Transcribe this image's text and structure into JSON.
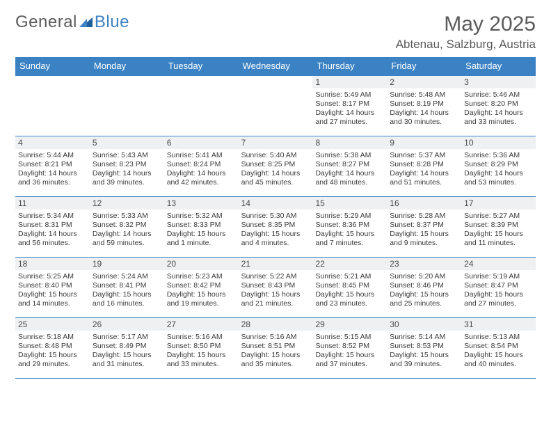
{
  "brand": {
    "part1": "General",
    "part2": "Blue"
  },
  "title": "May 2025",
  "location": "Abtenau, Salzburg, Austria",
  "colors": {
    "header_bg": "#3b82c4",
    "header_text": "#ffffff",
    "daynum_bg": "#eef0f2",
    "text": "#3a3a3a",
    "page_bg": "#ffffff"
  },
  "dow": [
    "Sunday",
    "Monday",
    "Tuesday",
    "Wednesday",
    "Thursday",
    "Friday",
    "Saturday"
  ],
  "weeks": [
    [
      {
        "n": "",
        "sr": "",
        "ss": "",
        "dlh": "",
        "dlm": ""
      },
      {
        "n": "",
        "sr": "",
        "ss": "",
        "dlh": "",
        "dlm": ""
      },
      {
        "n": "",
        "sr": "",
        "ss": "",
        "dlh": "",
        "dlm": ""
      },
      {
        "n": "",
        "sr": "",
        "ss": "",
        "dlh": "",
        "dlm": ""
      },
      {
        "n": "1",
        "sr": "5:49 AM",
        "ss": "8:17 PM",
        "dlh": "14",
        "dlm": "27"
      },
      {
        "n": "2",
        "sr": "5:48 AM",
        "ss": "8:19 PM",
        "dlh": "14",
        "dlm": "30"
      },
      {
        "n": "3",
        "sr": "5:46 AM",
        "ss": "8:20 PM",
        "dlh": "14",
        "dlm": "33"
      }
    ],
    [
      {
        "n": "4",
        "sr": "5:44 AM",
        "ss": "8:21 PM",
        "dlh": "14",
        "dlm": "36"
      },
      {
        "n": "5",
        "sr": "5:43 AM",
        "ss": "8:23 PM",
        "dlh": "14",
        "dlm": "39"
      },
      {
        "n": "6",
        "sr": "5:41 AM",
        "ss": "8:24 PM",
        "dlh": "14",
        "dlm": "42"
      },
      {
        "n": "7",
        "sr": "5:40 AM",
        "ss": "8:25 PM",
        "dlh": "14",
        "dlm": "45"
      },
      {
        "n": "8",
        "sr": "5:38 AM",
        "ss": "8:27 PM",
        "dlh": "14",
        "dlm": "48"
      },
      {
        "n": "9",
        "sr": "5:37 AM",
        "ss": "8:28 PM",
        "dlh": "14",
        "dlm": "51"
      },
      {
        "n": "10",
        "sr": "5:36 AM",
        "ss": "8:29 PM",
        "dlh": "14",
        "dlm": "53"
      }
    ],
    [
      {
        "n": "11",
        "sr": "5:34 AM",
        "ss": "8:31 PM",
        "dlh": "14",
        "dlm": "56"
      },
      {
        "n": "12",
        "sr": "5:33 AM",
        "ss": "8:32 PM",
        "dlh": "14",
        "dlm": "59"
      },
      {
        "n": "13",
        "sr": "5:32 AM",
        "ss": "8:33 PM",
        "dlh": "15",
        "dlm": "1",
        "singular": true
      },
      {
        "n": "14",
        "sr": "5:30 AM",
        "ss": "8:35 PM",
        "dlh": "15",
        "dlm": "4"
      },
      {
        "n": "15",
        "sr": "5:29 AM",
        "ss": "8:36 PM",
        "dlh": "15",
        "dlm": "7"
      },
      {
        "n": "16",
        "sr": "5:28 AM",
        "ss": "8:37 PM",
        "dlh": "15",
        "dlm": "9"
      },
      {
        "n": "17",
        "sr": "5:27 AM",
        "ss": "8:39 PM",
        "dlh": "15",
        "dlm": "11"
      }
    ],
    [
      {
        "n": "18",
        "sr": "5:25 AM",
        "ss": "8:40 PM",
        "dlh": "15",
        "dlm": "14"
      },
      {
        "n": "19",
        "sr": "5:24 AM",
        "ss": "8:41 PM",
        "dlh": "15",
        "dlm": "16"
      },
      {
        "n": "20",
        "sr": "5:23 AM",
        "ss": "8:42 PM",
        "dlh": "15",
        "dlm": "19"
      },
      {
        "n": "21",
        "sr": "5:22 AM",
        "ss": "8:43 PM",
        "dlh": "15",
        "dlm": "21"
      },
      {
        "n": "22",
        "sr": "5:21 AM",
        "ss": "8:45 PM",
        "dlh": "15",
        "dlm": "23"
      },
      {
        "n": "23",
        "sr": "5:20 AM",
        "ss": "8:46 PM",
        "dlh": "15",
        "dlm": "25"
      },
      {
        "n": "24",
        "sr": "5:19 AM",
        "ss": "8:47 PM",
        "dlh": "15",
        "dlm": "27"
      }
    ],
    [
      {
        "n": "25",
        "sr": "5:18 AM",
        "ss": "8:48 PM",
        "dlh": "15",
        "dlm": "29"
      },
      {
        "n": "26",
        "sr": "5:17 AM",
        "ss": "8:49 PM",
        "dlh": "15",
        "dlm": "31"
      },
      {
        "n": "27",
        "sr": "5:16 AM",
        "ss": "8:50 PM",
        "dlh": "15",
        "dlm": "33"
      },
      {
        "n": "28",
        "sr": "5:16 AM",
        "ss": "8:51 PM",
        "dlh": "15",
        "dlm": "35"
      },
      {
        "n": "29",
        "sr": "5:15 AM",
        "ss": "8:52 PM",
        "dlh": "15",
        "dlm": "37"
      },
      {
        "n": "30",
        "sr": "5:14 AM",
        "ss": "8:53 PM",
        "dlh": "15",
        "dlm": "39"
      },
      {
        "n": "31",
        "sr": "5:13 AM",
        "ss": "8:54 PM",
        "dlh": "15",
        "dlm": "40"
      }
    ]
  ]
}
